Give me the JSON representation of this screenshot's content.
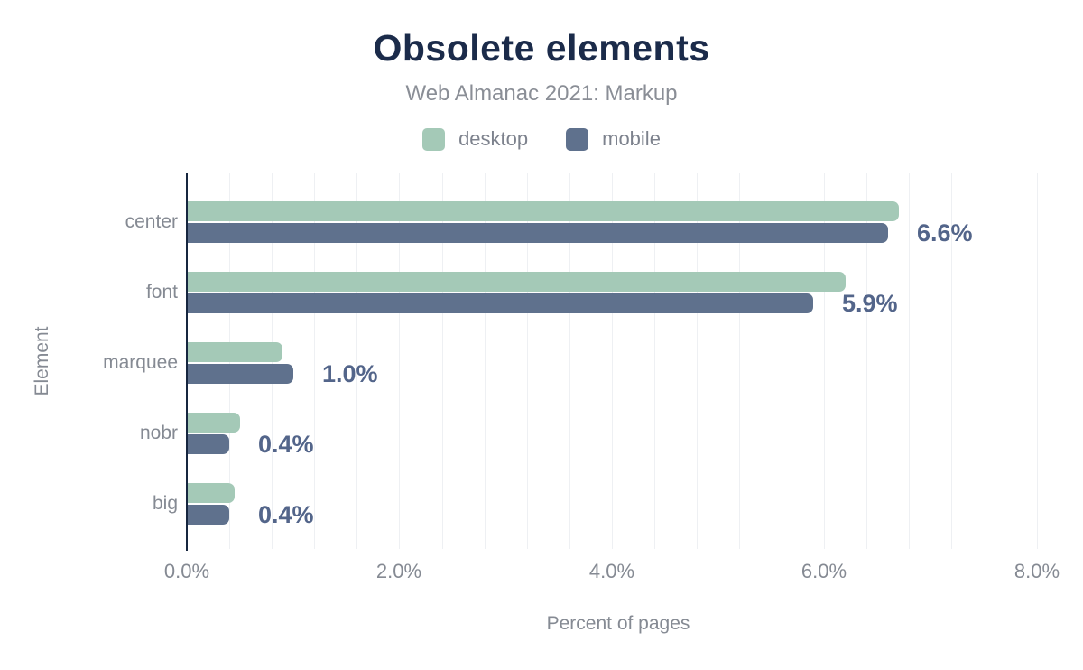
{
  "header": {
    "title": "Obsolete elements",
    "subtitle": "Web Almanac 2021: Markup"
  },
  "chart_data": {
    "type": "bar",
    "orientation": "horizontal",
    "title": "Obsolete elements",
    "subtitle": "Web Almanac 2021: Markup",
    "xlabel": "Percent of pages",
    "ylabel": "Element",
    "categories": [
      "center",
      "font",
      "marquee",
      "nobr",
      "big"
    ],
    "series": [
      {
        "name": "desktop",
        "color": "#a4c9b7",
        "values": [
          6.7,
          6.2,
          0.9,
          0.5,
          0.45
        ]
      },
      {
        "name": "mobile",
        "color": "#5f718d",
        "values": [
          6.6,
          5.9,
          1.0,
          0.4,
          0.4
        ]
      }
    ],
    "value_labels": [
      "6.6%",
      "5.9%",
      "1.0%",
      "0.4%",
      "0.4%"
    ],
    "value_labels_series": "mobile",
    "x_tick_labels": [
      "0.0%",
      "2.0%",
      "4.0%",
      "6.0%",
      "8.0%"
    ],
    "x_tick_values": [
      0,
      2,
      4,
      6,
      8
    ],
    "xlim": [
      0,
      8.12
    ],
    "grid": "vertical",
    "grid_step_pct": 0.4,
    "legend_position": "top"
  },
  "colors": {
    "desktop": "#a4c9b7",
    "mobile": "#5f718d",
    "title": "#1b2b4a",
    "subtitle": "#8a8e96",
    "axis_labels": "#858a93",
    "value_label": "#53658a",
    "axis_line": "#16263f",
    "gridline": "#eef0f3",
    "background": "#ffffff"
  }
}
